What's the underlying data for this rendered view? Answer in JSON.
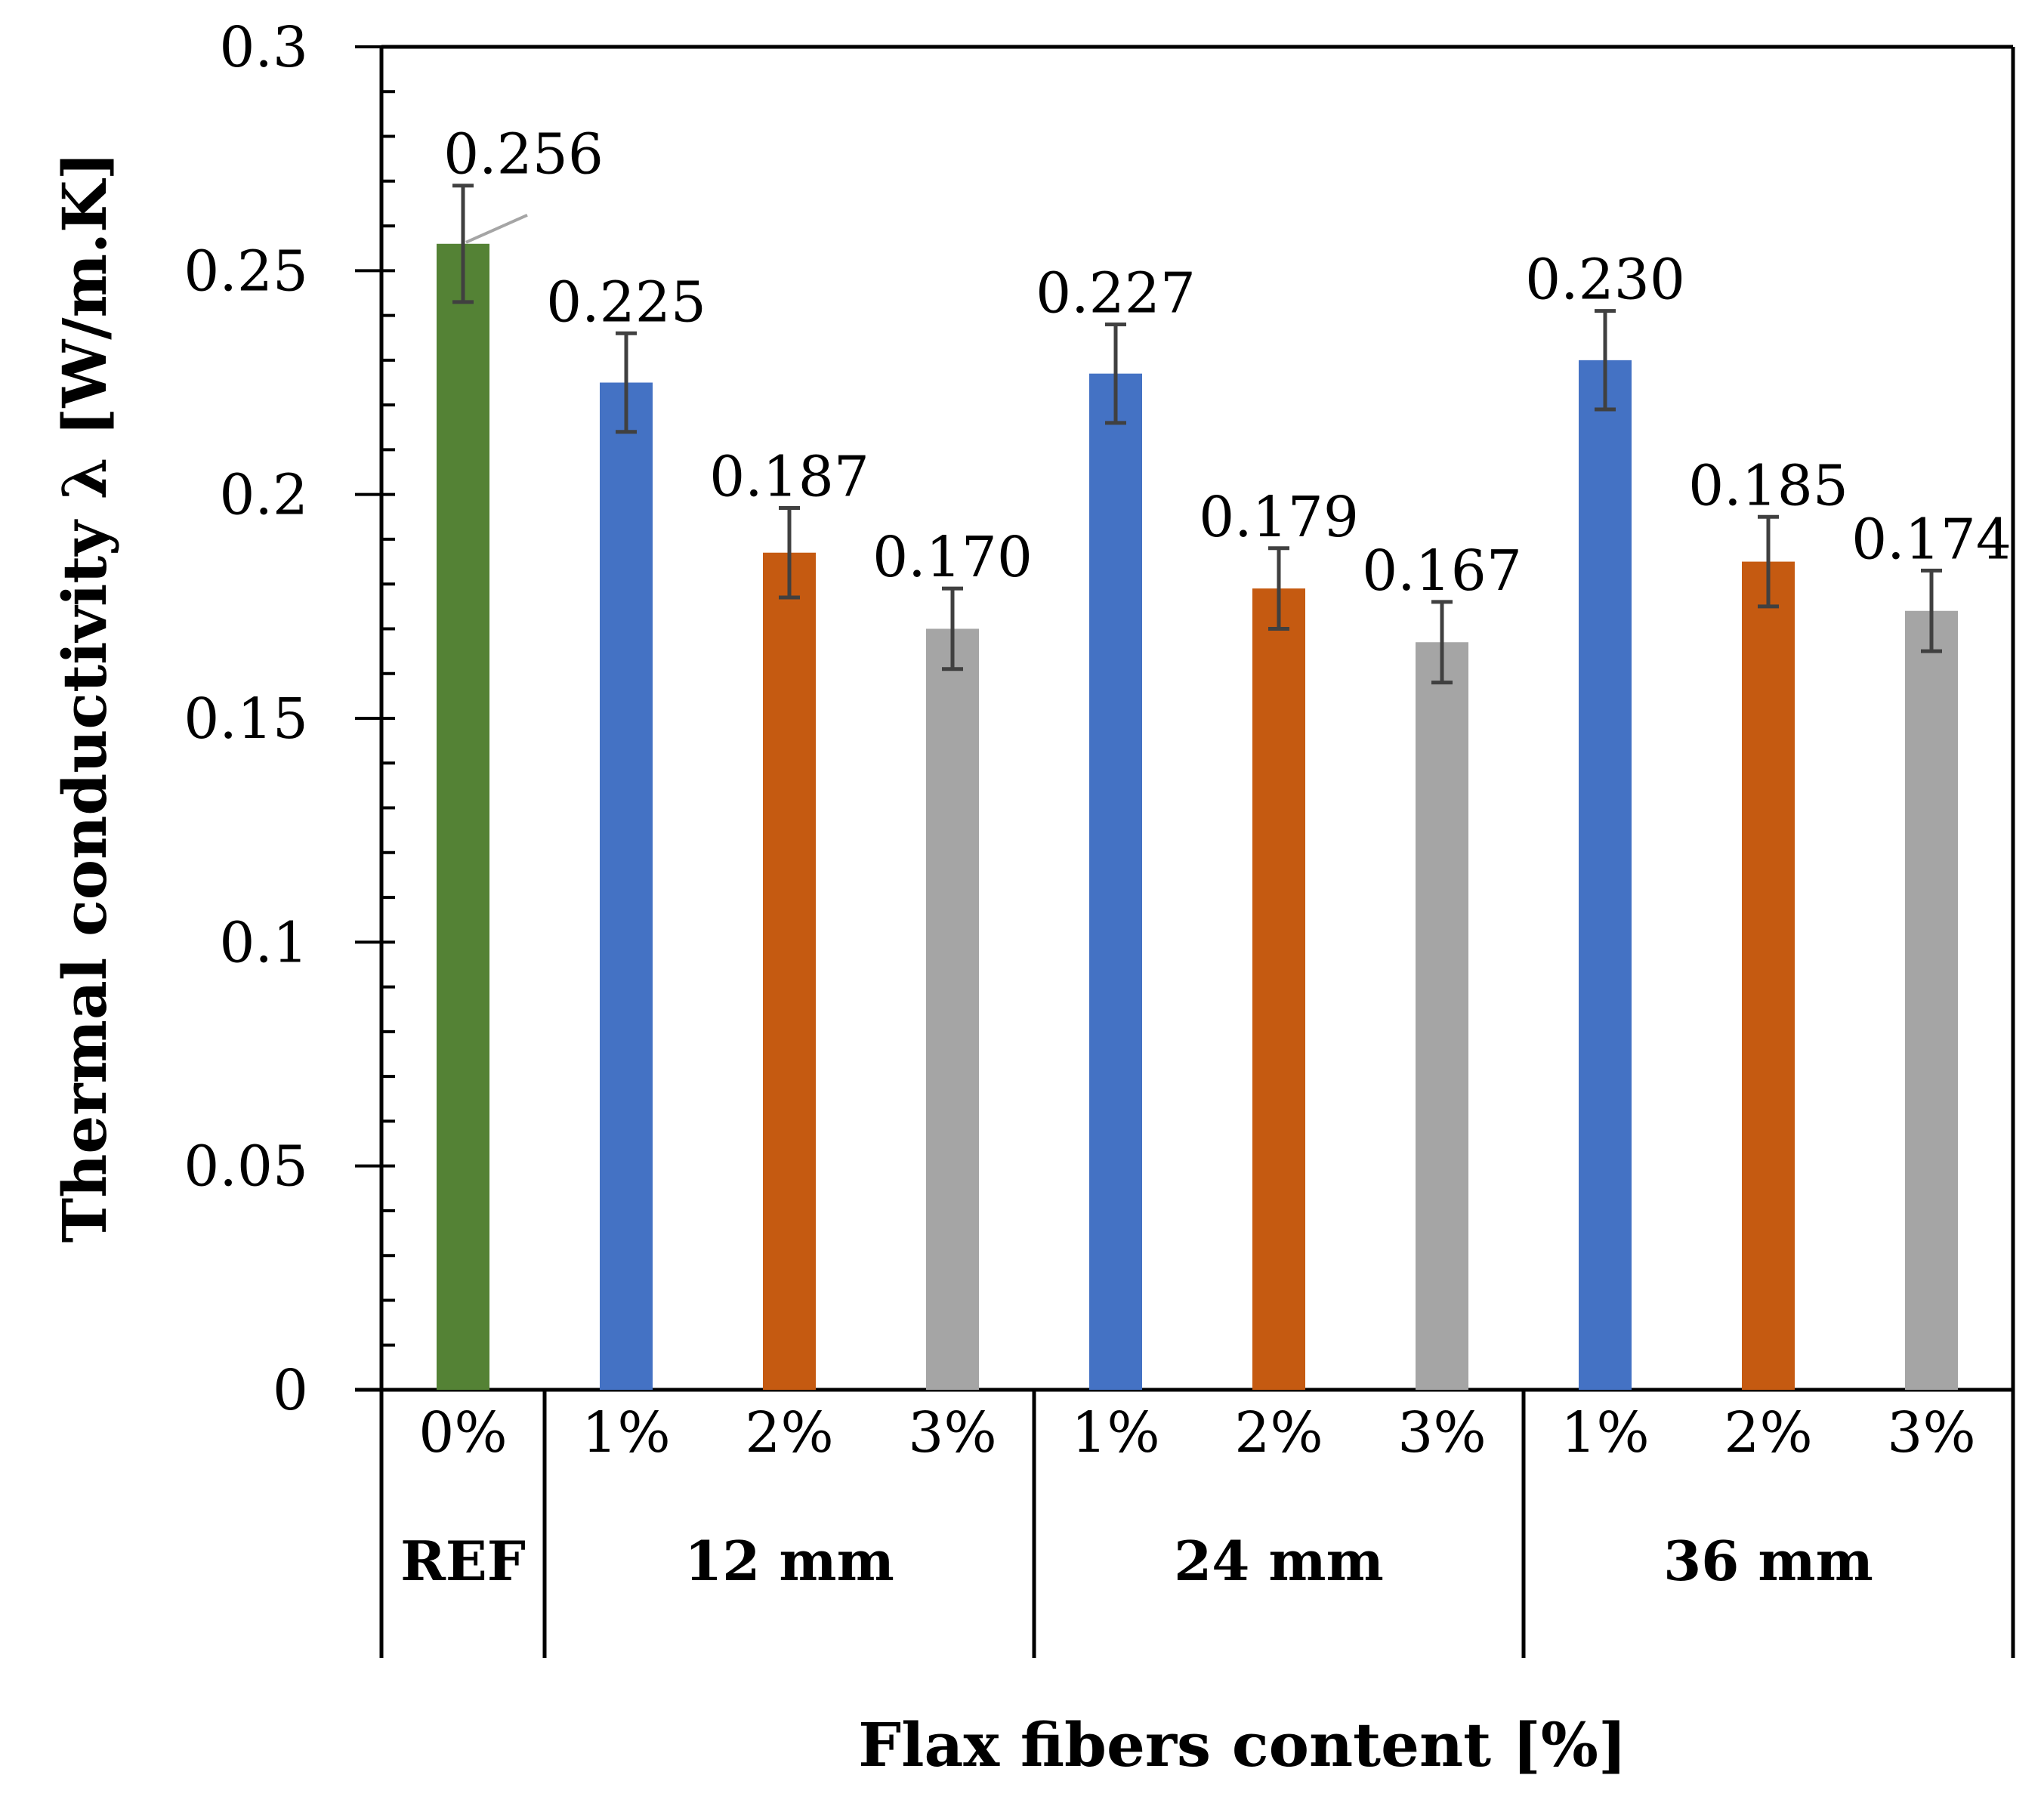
{
  "chart_data": {
    "type": "bar",
    "ylabel": "Thermal conductivity λ [W/m.K]",
    "xlabel": "Flax fibers content [%]",
    "ylim": [
      0,
      0.3
    ],
    "yticks": [
      "0",
      "0.05",
      "0.1",
      "0.15",
      "0.2",
      "0.25",
      "0.3"
    ],
    "yticks_values": [
      0,
      0.05,
      0.1,
      0.15,
      0.2,
      0.25,
      0.3
    ],
    "groups": [
      {
        "label": "REF",
        "bars": [
          {
            "category": "0%",
            "value": 0.256,
            "error": 0.013,
            "label": "0.256",
            "color": "#548235"
          }
        ]
      },
      {
        "label": "12 mm",
        "bars": [
          {
            "category": "1%",
            "value": 0.225,
            "error": 0.011,
            "label": "0.225",
            "color": "#4472C4"
          },
          {
            "category": "2%",
            "value": 0.187,
            "error": 0.01,
            "label": "0.187",
            "color": "#C55A11"
          },
          {
            "category": "3%",
            "value": 0.17,
            "error": 0.009,
            "label": "0.170",
            "color": "#A5A5A5"
          }
        ]
      },
      {
        "label": "24 mm",
        "bars": [
          {
            "category": "1%",
            "value": 0.227,
            "error": 0.011,
            "label": "0.227",
            "color": "#4472C4"
          },
          {
            "category": "2%",
            "value": 0.179,
            "error": 0.009,
            "label": "0.179",
            "color": "#C55A11"
          },
          {
            "category": "3%",
            "value": 0.167,
            "error": 0.009,
            "label": "0.167",
            "color": "#A5A5A5"
          }
        ]
      },
      {
        "label": "36 mm",
        "bars": [
          {
            "category": "1%",
            "value": 0.23,
            "error": 0.011,
            "label": "0.230",
            "color": "#4472C4"
          },
          {
            "category": "2%",
            "value": 0.185,
            "error": 0.01,
            "label": "0.185",
            "color": "#C55A11"
          },
          {
            "category": "3%",
            "value": 0.174,
            "error": 0.009,
            "label": "0.174",
            "color": "#A5A5A5"
          }
        ]
      }
    ]
  }
}
